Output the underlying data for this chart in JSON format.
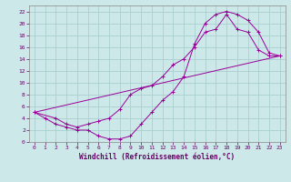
{
  "xlabel": "Windchill (Refroidissement éolien,°C)",
  "background_color": "#cce8e8",
  "grid_color": "#aacfcf",
  "line_color": "#990099",
  "xlim": [
    -0.5,
    23.5
  ],
  "ylim": [
    0,
    23
  ],
  "xticks": [
    0,
    1,
    2,
    3,
    4,
    5,
    6,
    7,
    8,
    9,
    10,
    11,
    12,
    13,
    14,
    15,
    16,
    17,
    18,
    19,
    20,
    21,
    22,
    23
  ],
  "yticks": [
    0,
    2,
    4,
    6,
    8,
    10,
    12,
    14,
    16,
    18,
    20,
    22
  ],
  "line1_x": [
    0,
    1,
    2,
    3,
    4,
    5,
    6,
    7,
    8,
    9,
    10,
    11,
    12,
    13,
    14,
    15,
    16,
    17,
    18,
    19,
    20,
    21,
    22,
    23
  ],
  "line1_y": [
    5,
    4,
    3,
    2.5,
    2,
    2,
    1,
    0.5,
    0.5,
    1,
    3,
    5,
    7,
    8.5,
    11,
    16.5,
    20,
    21.5,
    22,
    21.5,
    20.5,
    18.5,
    15,
    14.5
  ],
  "line2_x": [
    0,
    2,
    3,
    4,
    5,
    6,
    7,
    8,
    9,
    10,
    11,
    12,
    13,
    14,
    15,
    16,
    17,
    18,
    19,
    20,
    21,
    22,
    23
  ],
  "line2_y": [
    5,
    4,
    3,
    2.5,
    3,
    3.5,
    4,
    5.5,
    8,
    9,
    9.5,
    11,
    13,
    14,
    16,
    18.5,
    19,
    21.5,
    19,
    18.5,
    15.5,
    14.5,
    14.5
  ],
  "line3_x": [
    0,
    23
  ],
  "line3_y": [
    5,
    14.5
  ]
}
